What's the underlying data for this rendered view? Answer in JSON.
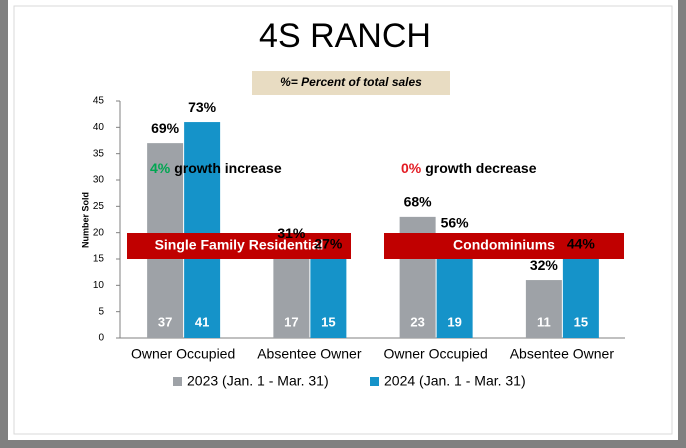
{
  "chart_data": {
    "type": "bar",
    "title": "4S RANCH",
    "subtitle": "%= Percent of total sales",
    "ylabel": "Number Sold",
    "categories": [
      "Owner Occupied",
      "Absentee Owner",
      "Owner Occupied",
      "Absentee Owner"
    ],
    "series": [
      {
        "name": "2023 (Jan. 1 - Mar. 31)",
        "color": "#9ea2a7",
        "values": [
          37,
          17,
          23,
          11
        ],
        "percent_labels": [
          "69%",
          "31%",
          "68%",
          "32%"
        ]
      },
      {
        "name": "2024 (Jan. 1 - Mar. 31)",
        "color": "#1593c9",
        "values": [
          41,
          15,
          19,
          15
        ],
        "percent_labels": [
          "73%",
          "27%",
          "56%",
          "44%"
        ]
      }
    ],
    "ylim": [
      0,
      45
    ],
    "yticks": [
      0,
      5,
      10,
      15,
      20,
      25,
      30,
      35,
      40,
      45
    ],
    "groups": [
      {
        "label": "Single Family Residential",
        "color": "#c00000"
      },
      {
        "label": "Condominiums",
        "color": "#c00000"
      }
    ],
    "annotations": [
      {
        "percent": "4%",
        "text": "growth increase",
        "color": "#00a651"
      },
      {
        "percent": "0%",
        "text": "growth decrease",
        "color": "#e31b23"
      }
    ]
  }
}
